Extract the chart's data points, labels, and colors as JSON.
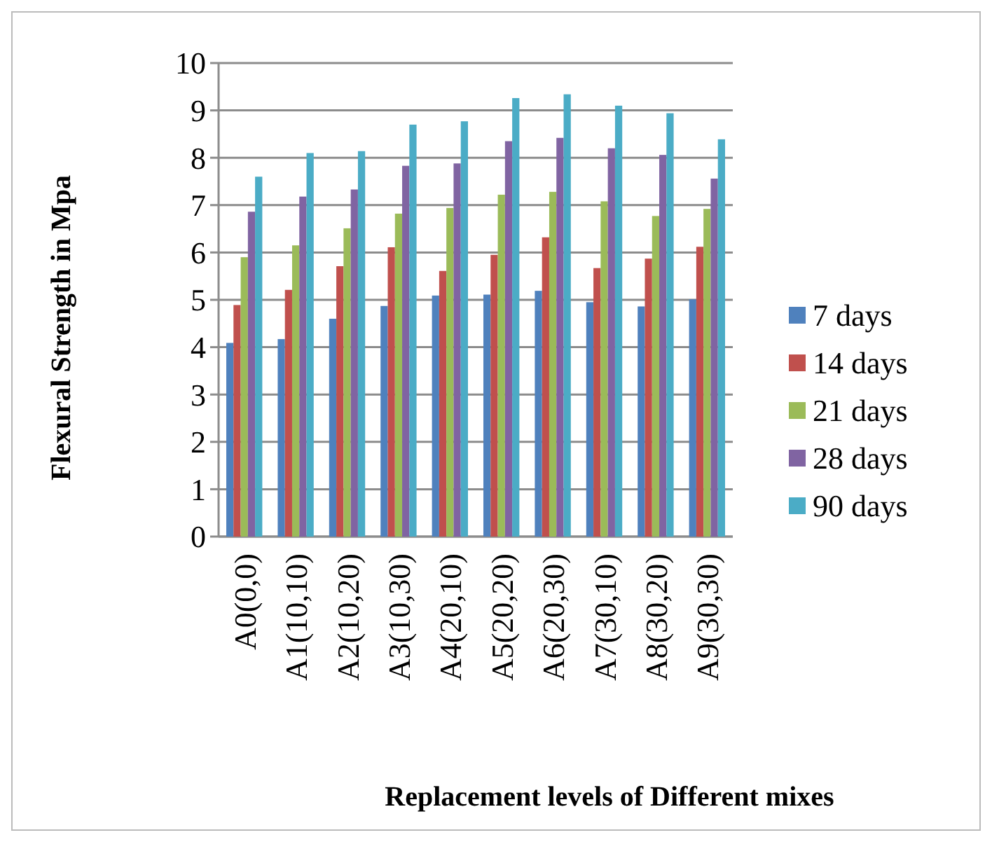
{
  "chart_data": {
    "type": "bar",
    "xlabel": "Replacement levels of Different mixes",
    "ylabel": "Flexural Strength in Mpa",
    "categories": [
      "A0(0,0)",
      "A1(10,10)",
      "A2(10,20)",
      "A3(10,30)",
      "A4(20,10)",
      "A5(20,20)",
      "A6(20,30)",
      "A7(30,10)",
      "A8(30,20)",
      "A9(30,30)"
    ],
    "series": [
      {
        "name": "7 days",
        "color": "#4f81bd",
        "values": [
          4.09,
          4.17,
          4.6,
          4.87,
          5.09,
          5.11,
          5.19,
          4.95,
          4.86,
          5.01
        ]
      },
      {
        "name": "14 days",
        "color": "#c0504d",
        "values": [
          4.89,
          5.21,
          5.71,
          6.11,
          5.61,
          5.95,
          6.32,
          5.67,
          5.87,
          6.12
        ]
      },
      {
        "name": "21 days",
        "color": "#9bbb59",
        "values": [
          5.9,
          6.15,
          6.51,
          6.82,
          6.94,
          7.22,
          7.28,
          7.08,
          6.77,
          6.92
        ]
      },
      {
        "name": "28 days",
        "color": "#8064a2",
        "values": [
          6.86,
          7.18,
          7.33,
          7.83,
          7.88,
          8.35,
          8.42,
          8.2,
          8.06,
          7.56
        ]
      },
      {
        "name": "90 days",
        "color": "#4bacc6",
        "values": [
          7.6,
          8.1,
          8.14,
          8.7,
          8.77,
          9.26,
          9.34,
          9.1,
          8.94,
          8.39
        ]
      }
    ],
    "ylim": [
      0,
      10
    ],
    "yticks": [
      0,
      1,
      2,
      3,
      4,
      5,
      6,
      7,
      8,
      9,
      10
    ],
    "grid": "y",
    "legend": "right"
  }
}
